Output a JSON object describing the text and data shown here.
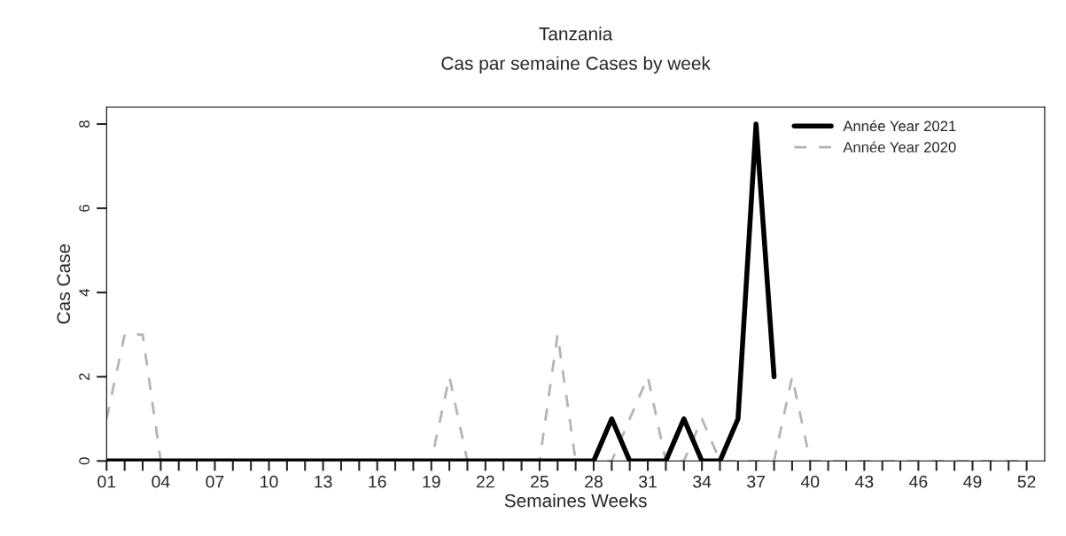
{
  "chart_data": {
    "type": "line",
    "title": "Tanzania",
    "subtitle": "Cas par semaine Cases by week",
    "xlabel": "Semaines Weeks",
    "ylabel": "Cas Case",
    "x": [
      1,
      2,
      3,
      4,
      5,
      6,
      7,
      8,
      9,
      10,
      11,
      12,
      13,
      14,
      15,
      16,
      17,
      18,
      19,
      20,
      21,
      22,
      23,
      24,
      25,
      26,
      27,
      28,
      29,
      30,
      31,
      32,
      33,
      34,
      35,
      36,
      37,
      38,
      39,
      40,
      41,
      42,
      43,
      44,
      45,
      46,
      47,
      48,
      49,
      50,
      51,
      52
    ],
    "series": [
      {
        "name": "Année Year 2021",
        "color": "#000000",
        "line_style": "solid",
        "x": [
          1,
          2,
          3,
          4,
          5,
          6,
          7,
          8,
          9,
          10,
          11,
          12,
          13,
          14,
          15,
          16,
          17,
          18,
          19,
          20,
          21,
          22,
          23,
          24,
          25,
          26,
          27,
          28,
          29,
          30,
          31,
          32,
          33,
          34,
          35,
          36,
          37,
          38
        ],
        "values": [
          0,
          0,
          0,
          0,
          0,
          0,
          0,
          0,
          0,
          0,
          0,
          0,
          0,
          0,
          0,
          0,
          0,
          0,
          0,
          0,
          0,
          0,
          0,
          0,
          0,
          0,
          0,
          0,
          1,
          0,
          0,
          0,
          1,
          0,
          0,
          1,
          8,
          2
        ]
      },
      {
        "name": "Année Year 2020",
        "color": "#b4b4b4",
        "line_style": "dashed",
        "values": [
          1,
          3,
          3,
          0,
          0,
          0,
          0,
          0,
          0,
          0,
          0,
          0,
          0,
          0,
          0,
          0,
          0,
          0,
          0,
          2,
          0,
          0,
          0,
          0,
          0,
          3,
          0,
          0,
          0,
          1,
          2,
          0,
          0,
          1,
          0,
          0,
          0,
          0,
          2,
          0,
          0,
          0,
          0,
          0,
          0,
          0,
          0,
          0,
          0,
          0,
          0,
          0
        ]
      }
    ],
    "xlim": [
      1,
      53
    ],
    "ylim": [
      0,
      8.4
    ],
    "xticks": [
      {
        "value": 1,
        "label": "01"
      },
      {
        "value": 2,
        "label": null
      },
      {
        "value": 3,
        "label": null
      },
      {
        "value": 4,
        "label": "04"
      },
      {
        "value": 5,
        "label": null
      },
      {
        "value": 6,
        "label": null
      },
      {
        "value": 7,
        "label": "07"
      },
      {
        "value": 8,
        "label": null
      },
      {
        "value": 9,
        "label": null
      },
      {
        "value": 10,
        "label": "10"
      },
      {
        "value": 11,
        "label": null
      },
      {
        "value": 12,
        "label": null
      },
      {
        "value": 13,
        "label": "13"
      },
      {
        "value": 14,
        "label": null
      },
      {
        "value": 15,
        "label": null
      },
      {
        "value": 16,
        "label": "16"
      },
      {
        "value": 17,
        "label": null
      },
      {
        "value": 18,
        "label": null
      },
      {
        "value": 19,
        "label": "19"
      },
      {
        "value": 20,
        "label": null
      },
      {
        "value": 21,
        "label": null
      },
      {
        "value": 22,
        "label": "22"
      },
      {
        "value": 23,
        "label": null
      },
      {
        "value": 24,
        "label": null
      },
      {
        "value": 25,
        "label": "25"
      },
      {
        "value": 26,
        "label": null
      },
      {
        "value": 27,
        "label": null
      },
      {
        "value": 28,
        "label": "28"
      },
      {
        "value": 29,
        "label": null
      },
      {
        "value": 30,
        "label": null
      },
      {
        "value": 31,
        "label": "31"
      },
      {
        "value": 32,
        "label": null
      },
      {
        "value": 33,
        "label": null
      },
      {
        "value": 34,
        "label": "34"
      },
      {
        "value": 35,
        "label": null
      },
      {
        "value": 36,
        "label": null
      },
      {
        "value": 37,
        "label": "37"
      },
      {
        "value": 38,
        "label": null
      },
      {
        "value": 39,
        "label": null
      },
      {
        "value": 40,
        "label": "40"
      },
      {
        "value": 41,
        "label": null
      },
      {
        "value": 42,
        "label": null
      },
      {
        "value": 43,
        "label": "43"
      },
      {
        "value": 44,
        "label": null
      },
      {
        "value": 45,
        "label": null
      },
      {
        "value": 46,
        "label": "46"
      },
      {
        "value": 47,
        "label": null
      },
      {
        "value": 48,
        "label": null
      },
      {
        "value": 49,
        "label": "49"
      },
      {
        "value": 50,
        "label": null
      },
      {
        "value": 51,
        "label": null
      },
      {
        "value": 52,
        "label": "52"
      }
    ],
    "yticks": [
      0,
      2,
      4,
      6,
      8
    ],
    "grid": false,
    "legend": "top right",
    "marker": "none"
  }
}
